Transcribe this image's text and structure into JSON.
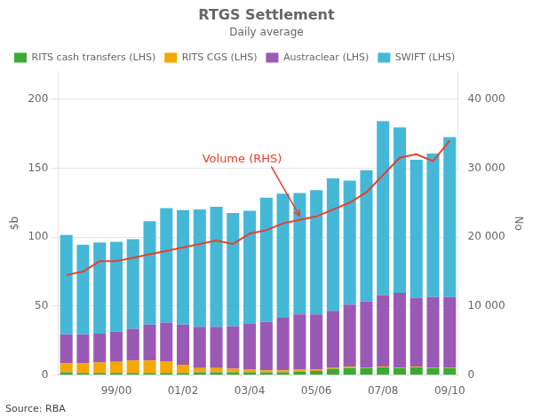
{
  "chart_data": {
    "type": "bar",
    "title": "RTGS Settlement",
    "subtitle": "Daily average",
    "source": "Source: RBA",
    "ylabel": "$b",
    "y2label": "No",
    "categories": [
      null,
      null,
      null,
      "99/00",
      null,
      null,
      null,
      "01/02",
      null,
      null,
      null,
      "03/04",
      null,
      null,
      null,
      "05/06",
      null,
      null,
      null,
      "07/08",
      null,
      null,
      null,
      "09/10"
    ],
    "stacked": true,
    "series": [
      {
        "name": "RITS cash transfers (LHS)",
        "color": "#3aaa35",
        "values": [
          2.0,
          1.5,
          1.5,
          1.5,
          1.5,
          1.5,
          1.5,
          1.5,
          2.0,
          2.0,
          2.0,
          2.0,
          2.0,
          2.0,
          2.5,
          3.0,
          4.5,
          5.0,
          5.0,
          5.5,
          5.0,
          5.5,
          5.0,
          5.0
        ]
      },
      {
        "name": "RITS CGS (LHS)",
        "color": "#f5a800",
        "values": [
          6.5,
          7.0,
          7.5,
          8.0,
          9.0,
          9.0,
          8.5,
          6.0,
          3.0,
          3.0,
          2.5,
          2.0,
          1.5,
          1.5,
          1.5,
          1.0,
          1.0,
          1.0,
          0.5,
          0.5,
          0.5,
          0.5,
          0.5,
          0.5
        ]
      },
      {
        "name": "Austraclear (LHS)",
        "color": "#9b59b6",
        "values": [
          21,
          21,
          21,
          22,
          23,
          26,
          28,
          29,
          30,
          30,
          31,
          33,
          35,
          38,
          40,
          40,
          41,
          45,
          48,
          52,
          54,
          50,
          51,
          51
        ]
      },
      {
        "name": "SWIFT (LHS)",
        "color": "#45b8d8",
        "values": [
          72,
          65,
          66,
          65,
          65,
          75,
          83,
          83,
          85,
          87,
          82,
          82,
          90,
          90,
          88,
          90,
          96,
          90,
          95,
          126,
          120,
          100,
          104,
          116
        ]
      },
      {
        "type": "line",
        "axis": "y2",
        "color": "#e8402a",
        "values": [
          14500,
          15000,
          16500,
          16500,
          17000,
          17500,
          18000,
          18500,
          19000,
          19500,
          19000,
          20500,
          21000,
          22000,
          22500,
          23000,
          24000,
          25000,
          26500,
          29000,
          31500,
          32000,
          31000,
          34000
        ]
      }
    ],
    "annotation": "Volume (RHS)",
    "ylim": [
      0,
      220
    ],
    "yticks": [
      0,
      50,
      100,
      150,
      200
    ],
    "y2lim": [
      0,
      44000
    ],
    "y2ticks": [
      0,
      {
        "value": 10000,
        "label": "10 000"
      },
      {
        "value": 20000,
        "label": "20 000"
      },
      {
        "value": 30000,
        "label": "30 000"
      },
      {
        "value": 40000,
        "label": "40 000"
      }
    ],
    "grid": true,
    "legend": "upper left"
  }
}
